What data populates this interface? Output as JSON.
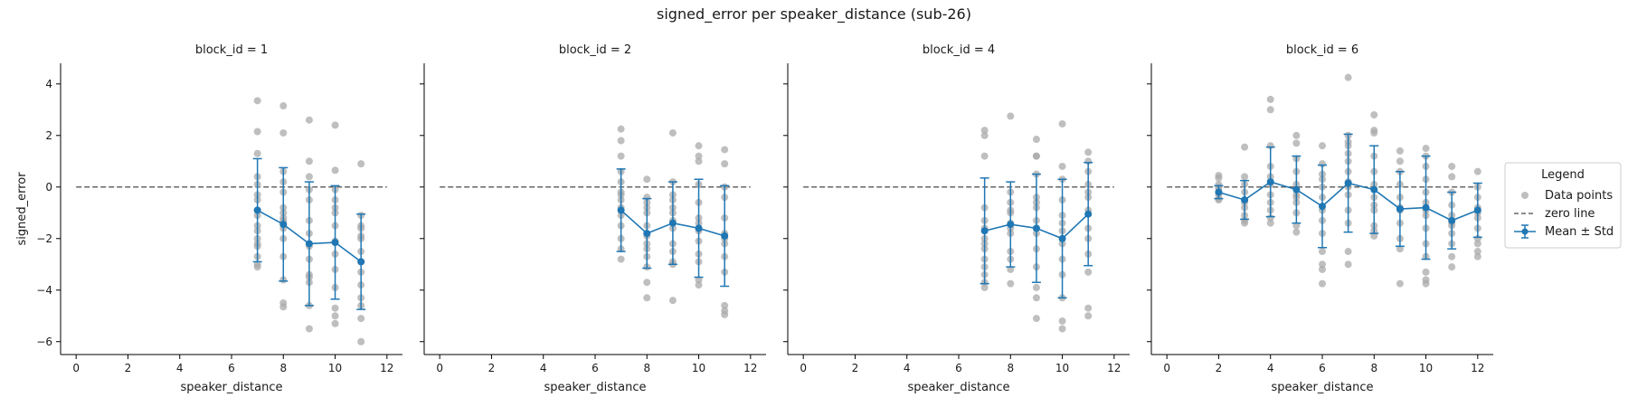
{
  "figure": {
    "title": "signed_error per speaker_distance (sub-26)"
  },
  "colors": {
    "points": "#a9a9a9",
    "mean": "#1f77b4",
    "zero": "#666666",
    "axis": "#000000"
  },
  "legend": {
    "title": "Legend",
    "items": [
      {
        "label": "Data points",
        "marker": "point"
      },
      {
        "label": "zero line",
        "marker": "dashed-line"
      },
      {
        "label": "Mean ± Std",
        "marker": "errorbar"
      }
    ]
  },
  "chart_data": [
    {
      "type": "scatter",
      "title": "block_id = 1",
      "xlabel": "speaker_distance",
      "ylabel": "signed_error",
      "xlim": [
        -0.6,
        12.6
      ],
      "ylim": [
        -6.5,
        4.8
      ],
      "xticks": [
        0,
        2,
        4,
        6,
        8,
        10,
        12
      ],
      "yticks": [
        -6,
        -4,
        -2,
        0,
        2,
        4
      ],
      "grid": false,
      "zero_line": 0,
      "mean_std": [
        {
          "x": 7,
          "mean": -0.9,
          "std": 2.0
        },
        {
          "x": 8,
          "mean": -1.45,
          "std": 2.2
        },
        {
          "x": 9,
          "mean": -2.2,
          "std": 2.4
        },
        {
          "x": 10,
          "mean": -2.15,
          "std": 2.2
        },
        {
          "x": 11,
          "mean": -2.9,
          "std": 1.85
        }
      ],
      "points": [
        {
          "x": 7,
          "y": [
            3.35,
            2.15,
            1.3,
            0.4,
            -0.3,
            -0.5,
            -0.9,
            -1.1,
            -1.5,
            -1.7,
            -2.0,
            -2.3,
            -2.7,
            -3.0,
            -3.1,
            -2.2,
            0.1
          ]
        },
        {
          "x": 8,
          "y": [
            3.15,
            2.1,
            0.6,
            -0.2,
            -0.8,
            -1.0,
            -1.3,
            -1.4,
            -1.6,
            -2.0,
            -2.7,
            -3.6,
            -4.5,
            -4.65,
            0.2,
            -1.2
          ]
        },
        {
          "x": 9,
          "y": [
            2.6,
            1.0,
            0.4,
            -0.5,
            -1.3,
            -1.8,
            -2.3,
            -2.8,
            -3.4,
            -3.7,
            -4.6,
            -5.5,
            -3.5,
            -0.1
          ]
        },
        {
          "x": 10,
          "y": [
            2.4,
            0.65,
            -0.1,
            -0.5,
            -1.0,
            -1.5,
            -2.1,
            -2.6,
            -3.2,
            -3.9,
            -4.7,
            -5.0,
            -5.3,
            -0.8
          ]
        },
        {
          "x": 11,
          "y": [
            0.9,
            -1.1,
            -1.5,
            -1.6,
            -2.0,
            -2.5,
            -2.9,
            -3.3,
            -3.8,
            -4.3,
            -4.6,
            -5.1,
            -6.0,
            -1.9
          ]
        }
      ]
    },
    {
      "type": "scatter",
      "title": "block_id = 2",
      "xlabel": "speaker_distance",
      "ylabel": "",
      "xlim": [
        -0.6,
        12.6
      ],
      "ylim": [
        -6.5,
        4.8
      ],
      "xticks": [
        0,
        2,
        4,
        6,
        8,
        10,
        12
      ],
      "yticks": [
        -6,
        -4,
        -2,
        0,
        2,
        4
      ],
      "grid": false,
      "zero_line": 0,
      "mean_std": [
        {
          "x": 7,
          "mean": -0.9,
          "std": 1.6
        },
        {
          "x": 8,
          "mean": -1.8,
          "std": 1.35
        },
        {
          "x": 9,
          "mean": -1.4,
          "std": 1.6
        },
        {
          "x": 10,
          "mean": -1.6,
          "std": 1.9
        },
        {
          "x": 11,
          "mean": -1.9,
          "std": 1.95
        }
      ],
      "points": [
        {
          "x": 7,
          "y": [
            2.25,
            1.8,
            0.6,
            0.2,
            -0.2,
            -0.5,
            -0.8,
            -1.1,
            -1.5,
            -2.0,
            -2.4,
            -2.8,
            1.2,
            -0.3
          ]
        },
        {
          "x": 8,
          "y": [
            0.3,
            -0.4,
            -0.6,
            -1.0,
            -1.5,
            -1.9,
            -2.4,
            -2.7,
            -3.1,
            -3.7,
            -4.3,
            -0.8,
            -2.2
          ]
        },
        {
          "x": 9,
          "y": [
            2.1,
            0.2,
            -0.3,
            -0.5,
            -0.8,
            -1.3,
            -1.6,
            -2.2,
            -2.9,
            -3.0,
            -4.4,
            -1.0,
            -2.5
          ]
        },
        {
          "x": 10,
          "y": [
            1.6,
            1.2,
            1.0,
            0.1,
            -0.6,
            -1.2,
            -1.7,
            -2.1,
            -2.6,
            -2.9,
            -3.6,
            -3.8,
            -1.4
          ]
        },
        {
          "x": 11,
          "y": [
            1.45,
            0.9,
            0.0,
            -0.4,
            -1.2,
            -1.8,
            -2.2,
            -2.7,
            -3.3,
            -4.6,
            -4.8,
            -4.95,
            -2.0
          ]
        }
      ]
    },
    {
      "type": "scatter",
      "title": "block_id = 4",
      "xlabel": "speaker_distance",
      "ylabel": "",
      "xlim": [
        -0.6,
        12.6
      ],
      "ylim": [
        -6.5,
        4.8
      ],
      "xticks": [
        0,
        2,
        4,
        6,
        8,
        10,
        12
      ],
      "yticks": [
        -6,
        -4,
        -2,
        0,
        2,
        4
      ],
      "grid": false,
      "zero_line": 0,
      "mean_std": [
        {
          "x": 7,
          "mean": -1.7,
          "std": 2.05
        },
        {
          "x": 8,
          "mean": -1.45,
          "std": 1.65
        },
        {
          "x": 9,
          "mean": -1.6,
          "std": 2.1
        },
        {
          "x": 10,
          "mean": -2.0,
          "std": 2.3
        },
        {
          "x": 11,
          "mean": -1.05,
          "std": 2.0
        }
      ],
      "points": [
        {
          "x": 7,
          "y": [
            2.2,
            2.0,
            1.2,
            -0.8,
            -1.3,
            -1.6,
            -2.0,
            -2.4,
            -2.8,
            -3.1,
            -3.4,
            -3.7,
            -3.9,
            -2.2
          ]
        },
        {
          "x": 8,
          "y": [
            2.75,
            -0.2,
            -0.6,
            -1.0,
            -1.4,
            -1.8,
            -2.5,
            -2.8,
            -3.2,
            -3.75,
            -0.9,
            -1.6
          ]
        },
        {
          "x": 9,
          "y": [
            1.85,
            1.2,
            1.2,
            0.5,
            -0.4,
            -0.8,
            -1.3,
            -1.8,
            -2.4,
            -3.1,
            -3.9,
            -4.3,
            -5.1,
            -0.6
          ]
        },
        {
          "x": 10,
          "y": [
            2.45,
            0.8,
            0.3,
            -0.5,
            -1.1,
            -1.7,
            -2.2,
            -2.8,
            -3.4,
            -4.3,
            -5.2,
            -5.5,
            -1.4
          ]
        },
        {
          "x": 11,
          "y": [
            1.35,
            1.0,
            0.6,
            0.1,
            -0.4,
            -0.9,
            -1.6,
            -2.0,
            -2.6,
            -3.3,
            -4.7,
            -5.0,
            -0.2
          ]
        }
      ]
    },
    {
      "type": "scatter",
      "title": "block_id = 6",
      "xlabel": "speaker_distance",
      "ylabel": "",
      "xlim": [
        -0.6,
        12.6
      ],
      "ylim": [
        -6.5,
        4.8
      ],
      "xticks": [
        0,
        2,
        4,
        6,
        8,
        10,
        12
      ],
      "yticks": [
        -6,
        -4,
        -2,
        0,
        2,
        4
      ],
      "grid": false,
      "zero_line": 0,
      "mean_std": [
        {
          "x": 2,
          "mean": -0.2,
          "std": 0.25
        },
        {
          "x": 3,
          "mean": -0.5,
          "std": 0.75
        },
        {
          "x": 4,
          "mean": 0.2,
          "std": 1.35
        },
        {
          "x": 5,
          "mean": -0.1,
          "std": 1.3
        },
        {
          "x": 6,
          "mean": -0.75,
          "std": 1.6
        },
        {
          "x": 7,
          "mean": 0.15,
          "std": 1.9
        },
        {
          "x": 8,
          "mean": -0.1,
          "std": 1.7
        },
        {
          "x": 9,
          "mean": -0.85,
          "std": 1.45
        },
        {
          "x": 10,
          "mean": -0.8,
          "std": 2.0
        },
        {
          "x": 11,
          "mean": -1.3,
          "std": 1.1
        },
        {
          "x": 12,
          "mean": -0.9,
          "std": 1.05
        }
      ],
      "points": [
        {
          "x": 2,
          "y": [
            0.45,
            0.35,
            0.1,
            -0.05,
            -0.2,
            -0.3,
            -0.45,
            -0.5,
            0.0
          ]
        },
        {
          "x": 3,
          "y": [
            1.55,
            0.4,
            0.1,
            -0.2,
            -0.5,
            -0.8,
            -1.1,
            -1.3,
            -1.4,
            -0.6
          ]
        },
        {
          "x": 4,
          "y": [
            3.4,
            3.0,
            1.6,
            0.8,
            0.4,
            0.1,
            -0.3,
            -0.9,
            -1.2,
            -1.4,
            -0.6
          ]
        },
        {
          "x": 5,
          "y": [
            2.0,
            1.7,
            1.1,
            0.6,
            0.1,
            -0.3,
            -0.6,
            -1.0,
            -1.5,
            -1.75,
            -0.4
          ]
        },
        {
          "x": 6,
          "y": [
            1.6,
            0.9,
            0.5,
            0.0,
            -0.4,
            -0.9,
            -1.3,
            -1.8,
            -2.5,
            -3.0,
            -3.2,
            -3.75,
            0.3
          ]
        },
        {
          "x": 7,
          "y": [
            4.25,
            2.0,
            1.6,
            1.3,
            1.0,
            0.6,
            0.2,
            -0.3,
            -0.9,
            -1.4,
            -2.5,
            -3.0,
            0.0,
            1.75
          ]
        },
        {
          "x": 8,
          "y": [
            2.8,
            2.2,
            2.1,
            1.2,
            0.6,
            0.1,
            -0.4,
            -0.9,
            -1.5,
            -1.7,
            -1.9,
            -0.7
          ]
        },
        {
          "x": 9,
          "y": [
            1.4,
            1.0,
            0.6,
            0.1,
            -0.4,
            -0.9,
            -1.4,
            -2.0,
            -2.4,
            -3.75,
            -0.8
          ]
        },
        {
          "x": 10,
          "y": [
            1.5,
            1.2,
            0.8,
            0.3,
            -0.2,
            -0.6,
            -1.1,
            -1.6,
            -2.2,
            -2.7,
            -3.3,
            -3.6,
            -3.75,
            -0.9
          ]
        },
        {
          "x": 11,
          "y": [
            0.8,
            0.4,
            -0.2,
            -0.7,
            -1.1,
            -1.4,
            -1.8,
            -2.2,
            -2.7,
            -3.1,
            -1.5
          ]
        },
        {
          "x": 12,
          "y": [
            0.6,
            0.0,
            -0.4,
            -0.8,
            -1.2,
            -1.6,
            -2.0,
            -2.2,
            -2.5,
            -2.7,
            -1.0
          ]
        }
      ]
    }
  ]
}
